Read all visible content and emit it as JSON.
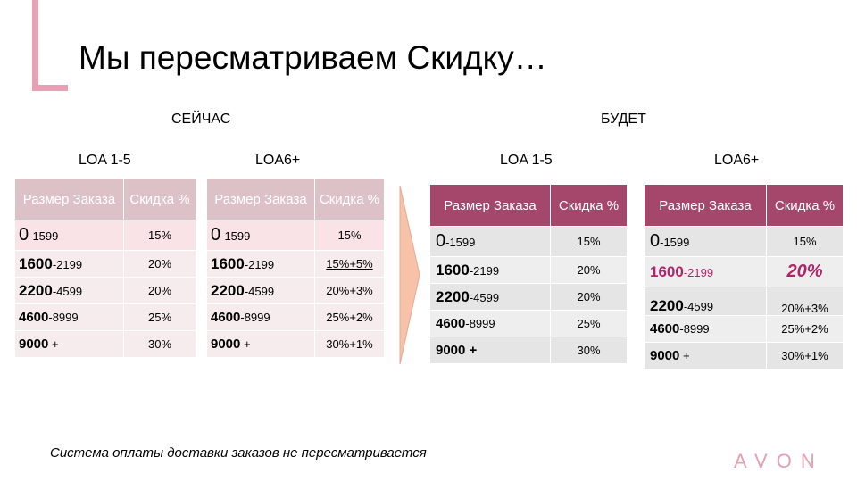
{
  "title": "Мы пересматриваем Скидку…",
  "now_label": "СЕЙЧАС",
  "future_label": "БУДЕТ",
  "groups": {
    "now_loa1": "LOA 1-5",
    "now_loa6": "LOA6+",
    "future_loa1": "LOA 1-5",
    "future_loa6": "LOA6+"
  },
  "headers": {
    "size": "Размер Заказа",
    "disc": "Скидка %"
  },
  "now_loa1_rows": [
    {
      "start": "0",
      "rest": "-1599",
      "disc": "15%"
    },
    {
      "start": "1600",
      "rest": "-2199",
      "disc": "20%"
    },
    {
      "start": "2200",
      "rest": "-4599",
      "disc": "20%"
    },
    {
      "start": "4600",
      "rest": "-8999",
      "disc": "25%"
    },
    {
      "start": "9000",
      "rest": " +",
      "disc": "30%"
    }
  ],
  "now_loa6_rows": [
    {
      "start": "0",
      "rest": "-1599",
      "disc": "15%"
    },
    {
      "start": "1600",
      "rest": "-2199",
      "disc": "15%+5%"
    },
    {
      "start": "2200",
      "rest": "-4599",
      "disc": "20%+3%"
    },
    {
      "start": "4600",
      "rest": "-8999",
      "disc": "25%+2%"
    },
    {
      "start": "9000",
      "rest": " +",
      "disc": "30%+1%"
    }
  ],
  "future_loa1_rows": [
    {
      "start": "0",
      "rest": "-1599",
      "disc": "15%"
    },
    {
      "start": "1600",
      "rest": "-2199",
      "disc": "20%"
    },
    {
      "start": "2200",
      "rest": "-4599",
      "disc": "20%"
    },
    {
      "start": "4600",
      "rest": "-8999",
      "disc": "25%"
    },
    {
      "start": "9000",
      "rest": " +",
      "disc": "30%"
    }
  ],
  "future_loa6_rows": [
    {
      "start": "0",
      "rest": "-1599",
      "disc": "15%"
    },
    {
      "start": "1600",
      "rest": "-2199",
      "disc": "20%"
    },
    {
      "start": "2200",
      "rest": "-4599",
      "disc": "20%+3%"
    },
    {
      "start": "4600",
      "rest": "-8999",
      "disc": "25%+2%"
    },
    {
      "start": "9000",
      "rest": " +",
      "disc": "30%+1%"
    }
  ],
  "footer": "Система оплаты доставки заказов не пересматривается",
  "logo": "AVON",
  "colors": {
    "accent": "#a4476b",
    "accent_faded": "#dcc1c7",
    "bracket": "#e8a0b6",
    "highlight": "#b0246a"
  },
  "icons": {
    "arrow": "right-arrow-icon"
  }
}
